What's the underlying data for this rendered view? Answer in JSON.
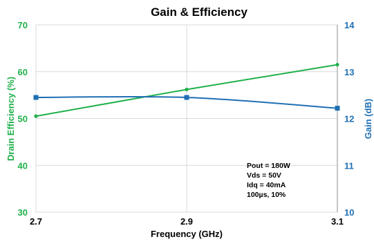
{
  "chart_data": {
    "type": "line",
    "title": "Gain & Efficiency",
    "xlabel": "Frequency (GHz)",
    "ylabel_left": "Drain Efficiency (%)",
    "ylabel_right": "Gain (dB)",
    "x": [
      2.7,
      2.9,
      3.1
    ],
    "x_ticks": [
      "2.7",
      "2.9",
      "3.1"
    ],
    "xlim": [
      2.7,
      3.1
    ],
    "ylim_left": [
      30,
      70
    ],
    "ylim_right": [
      10,
      14
    ],
    "y_ticks_left": [
      "30",
      "40",
      "50",
      "60",
      "70"
    ],
    "y_ticks_right": [
      "10",
      "11",
      "12",
      "13",
      "14"
    ],
    "grid": true,
    "series": [
      {
        "axis": "left",
        "marker": "circle",
        "color": "#1fb04a",
        "values": [
          50.5,
          56.2,
          61.5
        ]
      },
      {
        "axis": "right",
        "marker": "square",
        "color": "#1f6fb4",
        "values": [
          12.45,
          12.45,
          12.22
        ]
      }
    ],
    "annotation": [
      "Pout = 180W",
      "Vds = 50V",
      "Idq = 40mA",
      "100µs, 10%"
    ],
    "left_axis_color": "#1fb04a",
    "right_axis_color": "#1f6fb4"
  }
}
